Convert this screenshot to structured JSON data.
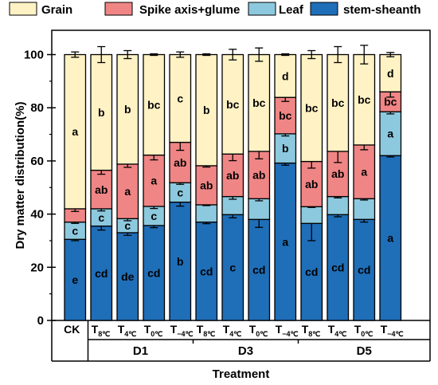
{
  "chart_data": {
    "type": "bar",
    "stacked": true,
    "xlabel": "Treatment",
    "ylabel": "Dry matter distribution(%)",
    "ylim": [
      0,
      100
    ],
    "yticks": [
      "0",
      "20",
      "40",
      "60",
      "80",
      "100"
    ],
    "legend": {
      "placement": "top",
      "entries": [
        {
          "name": "Grain",
          "color": "#FFF2C4"
        },
        {
          "name": "Spike axis+glume",
          "color": "#F08585"
        },
        {
          "name": "Leaf",
          "color": "#8DC9DE"
        },
        {
          "name": "stem-sheanth",
          "color": "#1F6EB8"
        }
      ]
    },
    "categories": [
      {
        "main": "CK",
        "sub": ""
      },
      {
        "main": "T",
        "sub": "8℃"
      },
      {
        "main": "T",
        "sub": "4℃"
      },
      {
        "main": "T",
        "sub": "0℃"
      },
      {
        "main": "T",
        "sub": "−4℃"
      },
      {
        "main": "T",
        "sub": "8℃"
      },
      {
        "main": "T",
        "sub": "4℃"
      },
      {
        "main": "T",
        "sub": "0℃"
      },
      {
        "main": "T",
        "sub": "−4℃"
      },
      {
        "main": "T",
        "sub": "8℃"
      },
      {
        "main": "T",
        "sub": "4℃"
      },
      {
        "main": "T",
        "sub": "0℃"
      },
      {
        "main": "T",
        "sub": "−4℃"
      }
    ],
    "groups": [
      {
        "label": "D1",
        "from": 1,
        "to": 4
      },
      {
        "label": "D3",
        "from": 5,
        "to": 8
      },
      {
        "label": "D5",
        "from": 9,
        "to": 12
      }
    ],
    "series": [
      {
        "name": "stem-sheanth",
        "color": "#1F6EB8",
        "values": [
          30.5,
          35.5,
          33.0,
          35.7,
          44.5,
          37.0,
          39.8,
          38.0,
          59.2,
          36.5,
          39.8,
          38.0,
          62.0
        ],
        "errors": [
          0.5,
          1.5,
          1.0,
          0.8,
          1.5,
          0.6,
          1.2,
          3.0,
          0.8,
          6.5,
          0.8,
          1.0,
          0.5
        ],
        "letters": [
          "e",
          "cd",
          "de",
          "cd",
          "b",
          "cd",
          "c",
          "cd",
          "a",
          "cd",
          "cd",
          "cd",
          "a"
        ]
      },
      {
        "name": "Leaf",
        "color": "#8DC9DE",
        "values": [
          6.5,
          6.5,
          5.3,
          7.2,
          7.3,
          6.5,
          6.8,
          7.8,
          11.0,
          6.3,
          6.8,
          7.8,
          16.5
        ],
        "errors": [
          0.5,
          0.8,
          0.8,
          0.8,
          0.6,
          0.3,
          1.0,
          0.8,
          0.8,
          0.3,
          0.5,
          0.5,
          0.8
        ],
        "letters": [
          "c",
          "c",
          "c",
          "c",
          "c",
          "",
          "",
          "",
          "b",
          "",
          "",
          "",
          "a"
        ]
      },
      {
        "name": "Spike axis+glume",
        "color": "#F08585",
        "values": [
          5.0,
          14.5,
          20.5,
          19.3,
          15.2,
          14.7,
          16.0,
          17.8,
          13.7,
          17.0,
          17.0,
          20.2,
          7.5
        ],
        "errors": [
          1.0,
          1.5,
          1.2,
          1.8,
          3.0,
          0.5,
          2.5,
          2.8,
          1.5,
          2.5,
          4.2,
          1.8,
          2.0
        ],
        "letters": [
          "",
          "ab",
          "a",
          "a",
          "ab",
          "ab",
          "ab",
          "ab",
          "bc",
          "ab",
          "ab",
          "a",
          "bc"
        ]
      },
      {
        "name": "Grain",
        "color": "#FFF2C4",
        "values": [
          58.0,
          43.5,
          41.2,
          37.8,
          33.0,
          41.8,
          37.4,
          36.4,
          16.1,
          40.2,
          36.4,
          34.0,
          14.0
        ],
        "errors": [
          1.0,
          3.0,
          1.5,
          0.3,
          1.0,
          0.3,
          2.0,
          2.5,
          0.3,
          1.5,
          3.0,
          3.5,
          0.8
        ],
        "letters": [
          "a",
          "b",
          "b",
          "bc",
          "c",
          "b",
          "bc",
          "bc",
          "d",
          "bc",
          "bc",
          "bc",
          "d"
        ]
      }
    ]
  }
}
